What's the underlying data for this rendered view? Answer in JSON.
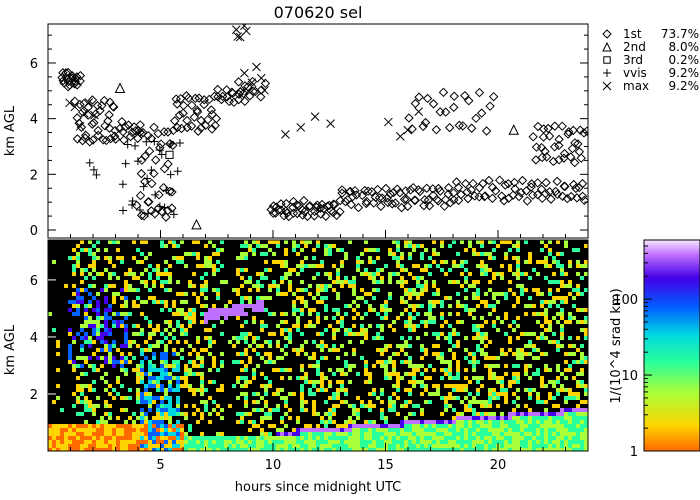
{
  "title": "070620 sel",
  "chart_data": [
    {
      "id": "cloud-layers",
      "type": "scatter",
      "title": "070620 sel",
      "ylabel": "km AGL",
      "xlim": [
        0,
        24
      ],
      "ylim": [
        0,
        7.4
      ],
      "yticks": [
        0,
        2,
        4,
        6
      ],
      "legend_position": "right",
      "series": [
        {
          "name": "1st",
          "pct": "73.7%",
          "marker": "diamond",
          "segments": [
            {
              "x0": 0.6,
              "x1": 1.4,
              "y0": 5.2,
              "y1": 5.6,
              "n": 20
            },
            {
              "x0": 1.2,
              "x1": 3.0,
              "y0": 3.2,
              "y1": 4.6,
              "n": 36
            },
            {
              "x0": 3.0,
              "x1": 4.2,
              "y0": 3.3,
              "y1": 3.8,
              "n": 16
            },
            {
              "x0": 4.0,
              "x1": 5.6,
              "y0": 0.5,
              "y1": 3.6,
              "n": 40
            },
            {
              "x0": 5.6,
              "x1": 7.5,
              "y0": 3.6,
              "y1": 4.8,
              "n": 34
            },
            {
              "x0": 7.5,
              "x1": 8.7,
              "y0": 4.6,
              "y1": 5.0,
              "n": 14
            },
            {
              "x0": 8.4,
              "x1": 9.6,
              "y0": 4.8,
              "y1": 5.3,
              "n": 12
            },
            {
              "x0": 9.9,
              "x1": 13.0,
              "y0": 0.5,
              "y1": 1.0,
              "n": 44
            },
            {
              "x0": 13.0,
              "x1": 18.0,
              "y0": 0.9,
              "y1": 1.5,
              "n": 60
            },
            {
              "x0": 18.0,
              "x1": 23.9,
              "y0": 1.1,
              "y1": 1.7,
              "n": 60
            },
            {
              "x0": 16.0,
              "x1": 19.8,
              "y0": 3.6,
              "y1": 4.9,
              "n": 26
            },
            {
              "x0": 21.6,
              "x1": 23.9,
              "y0": 2.5,
              "y1": 3.7,
              "n": 34
            }
          ]
        },
        {
          "name": "2nd",
          "pct": "8.0%",
          "marker": "triangle",
          "points": [
            [
              3.2,
              5.1
            ],
            [
              6.6,
              0.2
            ],
            [
              20.7,
              3.6
            ]
          ]
        },
        {
          "name": "3rd",
          "pct": "0.2%",
          "marker": "square",
          "points": [
            [
              5.4,
              2.7
            ]
          ]
        },
        {
          "name": "vvis",
          "pct": "9.2%",
          "marker": "plus",
          "segments": [
            {
              "x0": 3.3,
              "x1": 5.8,
              "y0": 0.6,
              "y1": 3.2,
              "n": 26
            },
            {
              "x0": 1.9,
              "x1": 2.1,
              "y0": 1.9,
              "y1": 2.5,
              "n": 3
            }
          ]
        },
        {
          "name": "max",
          "pct": "9.2%",
          "marker": "x",
          "segments": [
            {
              "x0": 1.0,
              "x1": 2.0,
              "y0": 3.8,
              "y1": 4.6,
              "n": 6
            },
            {
              "x0": 8.4,
              "x1": 8.8,
              "y0": 6.8,
              "y1": 7.3,
              "n": 5
            },
            {
              "x0": 8.8,
              "x1": 9.6,
              "y0": 5.0,
              "y1": 5.9,
              "n": 6
            },
            {
              "x0": 10.6,
              "x1": 12.6,
              "y0": 3.5,
              "y1": 4.0,
              "n": 4
            },
            {
              "x0": 15.2,
              "x1": 16.4,
              "y0": 3.3,
              "y1": 4.2,
              "n": 4
            }
          ]
        }
      ]
    },
    {
      "id": "backscatter",
      "type": "heatmap",
      "xlabel": "hours since midnight UTC",
      "ylabel": "km AGL",
      "xlim": [
        0,
        24
      ],
      "ylim": [
        0,
        7.4
      ],
      "xticks": [
        5,
        10,
        15,
        20
      ],
      "yticks": [
        2,
        4,
        6
      ],
      "colorbar": {
        "label": "1/(10^4 srad km)",
        "scale": "log",
        "range": [
          1,
          600
        ],
        "ticks": [
          1,
          10,
          100
        ],
        "colors": [
          "#ff6a00",
          "#ffd400",
          "#a8ff3a",
          "#2aff9a",
          "#00d8e0",
          "#0060ff",
          "#4400e8",
          "#c070ff",
          "#ffffff"
        ]
      }
    }
  ]
}
